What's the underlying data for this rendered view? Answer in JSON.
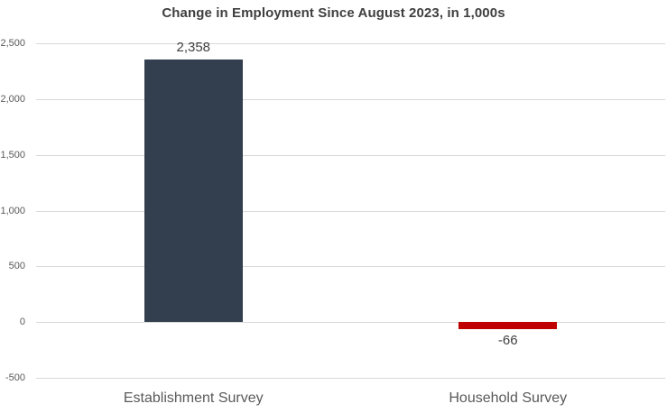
{
  "chart_data": {
    "type": "bar",
    "title": "Change in Employment Since August 2023, in 1,000s",
    "categories": [
      "Establishment Survey",
      "Household Survey"
    ],
    "values": [
      2358,
      -66
    ],
    "value_labels": [
      "2,358",
      "-66"
    ],
    "bar_colors": [
      "#333F4F",
      "#C00000"
    ],
    "ylim": [
      -500,
      2500
    ],
    "ytick_step": 500,
    "ytick_labels": [
      "-500",
      "0",
      "500",
      "1,000",
      "1,500",
      "2,000",
      "2,500"
    ],
    "xlabel": "",
    "ylabel": "",
    "grid": "horizontal",
    "legend": "none",
    "colors": {
      "background": "#FFFFFF",
      "gridline": "#D9D9D9",
      "title_text": "#3F3F3F",
      "axis_text": "#595959",
      "data_label_text": "#404040",
      "category_text": "#595959"
    }
  }
}
